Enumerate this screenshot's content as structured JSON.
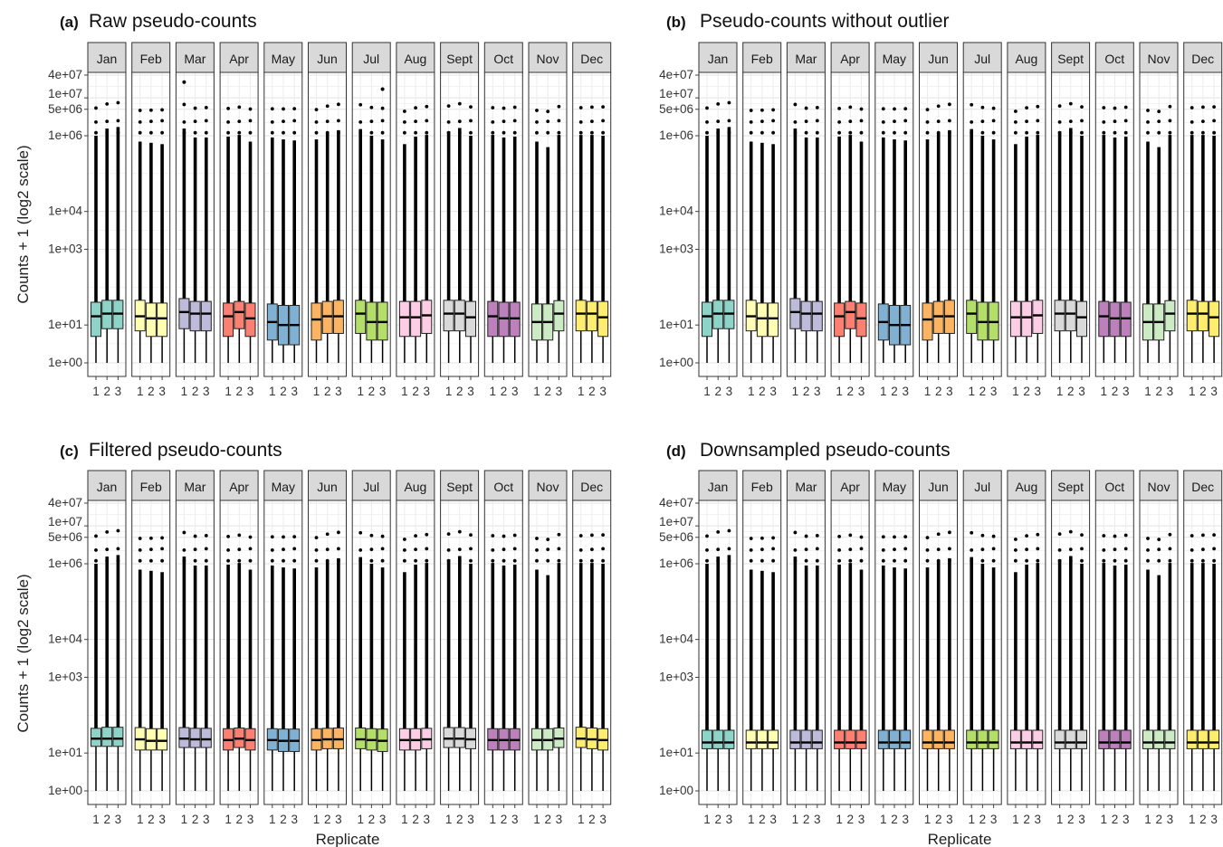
{
  "chart_data": {
    "type": "boxplot",
    "months": [
      "Jan",
      "Feb",
      "Mar",
      "Apr",
      "May",
      "Jun",
      "Jul",
      "Aug",
      "Sept",
      "Oct",
      "Nov",
      "Dec"
    ],
    "replicates": [
      "1",
      "2",
      "3"
    ],
    "yticks": [
      "1e+00",
      "1e+01",
      "1e+03",
      "1e+04",
      "1e+06",
      "5e+06",
      "1e+07",
      "4e+07"
    ],
    "ylabel": "Counts + 1 (log2 scale)",
    "xlabel": "Replicate",
    "yscale": "log2",
    "grid": true,
    "colors": [
      "#8dd3c7",
      "#ffffb3",
      "#bebada",
      "#fb8072",
      "#80b1d3",
      "#fdb462",
      "#b3de69",
      "#fccde5",
      "#d9d9d9",
      "#bc80bd",
      "#ccebc5",
      "#ffed6f"
    ],
    "panels": [
      {
        "letter": "(a)",
        "title": "Raw pseudo-counts",
        "stats": [
          [
            [
              1,
              5,
              17,
              40,
              14
            ],
            [
              1,
              8,
              20,
              45,
              25
            ],
            [
              1,
              8,
              20,
              45,
              28
            ]
          ],
          [
            [
              1,
              7,
              17,
              45,
              8
            ],
            [
              1,
              5,
              15,
              38,
              7
            ],
            [
              1,
              5,
              15,
              38,
              6
            ]
          ],
          [
            [
              1,
              8,
              22,
              50,
              25
            ],
            [
              1,
              7,
              20,
              42,
              12
            ],
            [
              1,
              7,
              20,
              42,
              12
            ]
          ],
          [
            [
              1,
              5,
              17,
              38,
              13
            ],
            [
              1,
              8,
              22,
              42,
              15
            ],
            [
              1,
              5,
              15,
              38,
              8
            ]
          ],
          [
            [
              1,
              4,
              12,
              36,
              12
            ],
            [
              1,
              3,
              10,
              33,
              10
            ],
            [
              1,
              3,
              10,
              33,
              9
            ]
          ],
          [
            [
              1,
              4,
              14,
              38,
              10
            ],
            [
              1,
              6,
              17,
              42,
              18
            ],
            [
              1,
              6,
              17,
              45,
              22
            ]
          ],
          [
            [
              1,
              6,
              20,
              45,
              24
            ],
            [
              1,
              4,
              12,
              40,
              14
            ],
            [
              1,
              4,
              12,
              40,
              10
            ]
          ],
          [
            [
              1,
              5,
              16,
              42,
              6
            ],
            [
              1,
              5,
              16,
              42,
              13
            ],
            [
              1,
              6,
              18,
              45,
              15
            ]
          ],
          [
            [
              1,
              7,
              20,
              45,
              20
            ],
            [
              1,
              7,
              20,
              45,
              26
            ],
            [
              1,
              5,
              16,
              42,
              14
            ]
          ],
          [
            [
              1,
              5,
              17,
              42,
              15
            ],
            [
              1,
              5,
              15,
              40,
              12
            ],
            [
              1,
              5,
              15,
              40,
              13
            ]
          ],
          [
            [
              1,
              4,
              12,
              36,
              8
            ],
            [
              1,
              4,
              12,
              36,
              4
            ],
            [
              1,
              7,
              20,
              44,
              15
            ]
          ],
          [
            [
              1,
              7,
              20,
              45,
              15
            ],
            [
              1,
              7,
              20,
              42,
              15
            ],
            [
              1,
              5,
              16,
              42,
              14
            ]
          ]
        ]
      },
      {
        "letter": "(b)",
        "title": "Pseudo-counts without outlier",
        "stats": [
          [
            [
              1,
              5,
              17,
              40,
              14
            ],
            [
              1,
              8,
              20,
              45,
              25
            ],
            [
              1,
              8,
              20,
              45,
              28
            ]
          ],
          [
            [
              1,
              7,
              17,
              45,
              8
            ],
            [
              1,
              5,
              15,
              38,
              7
            ],
            [
              1,
              5,
              15,
              38,
              6
            ]
          ],
          [
            [
              1,
              8,
              22,
              50,
              25
            ],
            [
              1,
              7,
              20,
              42,
              12
            ],
            [
              1,
              7,
              20,
              42,
              12
            ]
          ],
          [
            [
              1,
              5,
              17,
              38,
              13
            ],
            [
              1,
              8,
              22,
              42,
              15
            ],
            [
              1,
              5,
              15,
              38,
              8
            ]
          ],
          [
            [
              1,
              4,
              12,
              36,
              12
            ],
            [
              1,
              3,
              10,
              33,
              10
            ],
            [
              1,
              3,
              10,
              33,
              9
            ]
          ],
          [
            [
              1,
              4,
              14,
              38,
              10
            ],
            [
              1,
              6,
              17,
              42,
              18
            ],
            [
              1,
              6,
              17,
              45,
              22
            ]
          ],
          [
            [
              1,
              6,
              20,
              45,
              24
            ],
            [
              1,
              4,
              12,
              40,
              14
            ],
            [
              1,
              4,
              12,
              40,
              10
            ]
          ],
          [
            [
              1,
              5,
              16,
              42,
              6
            ],
            [
              1,
              5,
              16,
              42,
              13
            ],
            [
              1,
              6,
              18,
              45,
              15
            ]
          ],
          [
            [
              1,
              7,
              20,
              45,
              20
            ],
            [
              1,
              7,
              20,
              45,
              26
            ],
            [
              1,
              5,
              16,
              42,
              14
            ]
          ],
          [
            [
              1,
              5,
              17,
              42,
              15
            ],
            [
              1,
              5,
              15,
              40,
              12
            ],
            [
              1,
              5,
              15,
              40,
              13
            ]
          ],
          [
            [
              1,
              4,
              12,
              36,
              8
            ],
            [
              1,
              4,
              12,
              36,
              4
            ],
            [
              1,
              7,
              20,
              44,
              15
            ]
          ],
          [
            [
              1,
              7,
              20,
              45,
              15
            ],
            [
              1,
              7,
              20,
              42,
              15
            ],
            [
              1,
              5,
              16,
              42,
              14
            ]
          ]
        ]
      },
      {
        "letter": "(c)",
        "title": "Filtered pseudo-counts",
        "stats": [
          [
            [
              1,
              15,
              24,
              45,
              14
            ],
            [
              1,
              15,
              24,
              48,
              25
            ],
            [
              1,
              15,
              24,
              48,
              28
            ]
          ],
          [
            [
              1,
              12,
              23,
              47,
              8
            ],
            [
              1,
              12,
              21,
              44,
              7
            ],
            [
              1,
              12,
              21,
              44,
              6
            ]
          ],
          [
            [
              1,
              14,
              24,
              47,
              25
            ],
            [
              1,
              14,
              23,
              45,
              12
            ],
            [
              1,
              14,
              23,
              45,
              12
            ]
          ],
          [
            [
              1,
              12,
              22,
              44,
              13
            ],
            [
              1,
              14,
              24,
              46,
              15
            ],
            [
              1,
              12,
              22,
              44,
              8
            ]
          ],
          [
            [
              1,
              12,
              22,
              44,
              12
            ],
            [
              1,
              11,
              21,
              43,
              10
            ],
            [
              1,
              11,
              21,
              43,
              9
            ]
          ],
          [
            [
              1,
              12,
              22,
              44,
              10
            ],
            [
              1,
              13,
              23,
              45,
              18
            ],
            [
              1,
              13,
              23,
              46,
              22
            ]
          ],
          [
            [
              1,
              13,
              23,
              46,
              24
            ],
            [
              1,
              12,
              22,
              44,
              14
            ],
            [
              1,
              11,
              21,
              43,
              10
            ]
          ],
          [
            [
              1,
              12,
              22,
              44,
              6
            ],
            [
              1,
              12,
              22,
              44,
              13
            ],
            [
              1,
              13,
              23,
              45,
              15
            ]
          ],
          [
            [
              1,
              14,
              24,
              47,
              20
            ],
            [
              1,
              14,
              24,
              47,
              26
            ],
            [
              1,
              13,
              23,
              45,
              14
            ]
          ],
          [
            [
              1,
              12,
              22,
              44,
              15
            ],
            [
              1,
              12,
              22,
              44,
              12
            ],
            [
              1,
              12,
              22,
              44,
              13
            ]
          ],
          [
            [
              1,
              12,
              22,
              44,
              8
            ],
            [
              1,
              12,
              22,
              44,
              4
            ],
            [
              1,
              14,
              24,
              46,
              15
            ]
          ],
          [
            [
              1,
              14,
              24,
              48,
              15
            ],
            [
              1,
              13,
              23,
              46,
              15
            ],
            [
              1,
              12,
              22,
              44,
              14
            ]
          ]
        ]
      },
      {
        "letter": "(d)",
        "title": "Downsampled pseudo-counts",
        "stats": [
          [
            [
              1,
              13,
              19,
              40,
              14
            ],
            [
              1,
              13,
              19,
              40,
              25
            ],
            [
              1,
              13,
              19,
              40,
              28
            ]
          ],
          [
            [
              1,
              13,
              19,
              40,
              8
            ],
            [
              1,
              13,
              19,
              40,
              7
            ],
            [
              1,
              13,
              19,
              40,
              6
            ]
          ],
          [
            [
              1,
              13,
              19,
              40,
              25
            ],
            [
              1,
              13,
              19,
              40,
              12
            ],
            [
              1,
              13,
              19,
              40,
              12
            ]
          ],
          [
            [
              1,
              13,
              19,
              40,
              13
            ],
            [
              1,
              13,
              19,
              40,
              15
            ],
            [
              1,
              13,
              19,
              40,
              8
            ]
          ],
          [
            [
              1,
              13,
              19,
              40,
              12
            ],
            [
              1,
              13,
              19,
              40,
              10
            ],
            [
              1,
              13,
              19,
              40,
              9
            ]
          ],
          [
            [
              1,
              13,
              19,
              40,
              10
            ],
            [
              1,
              13,
              19,
              40,
              18
            ],
            [
              1,
              13,
              19,
              40,
              22
            ]
          ],
          [
            [
              1,
              13,
              19,
              40,
              24
            ],
            [
              1,
              13,
              19,
              40,
              14
            ],
            [
              1,
              13,
              19,
              40,
              10
            ]
          ],
          [
            [
              1,
              13,
              19,
              40,
              6
            ],
            [
              1,
              13,
              19,
              40,
              13
            ],
            [
              1,
              13,
              19,
              40,
              15
            ]
          ],
          [
            [
              1,
              13,
              19,
              40,
              20
            ],
            [
              1,
              13,
              19,
              40,
              26
            ],
            [
              1,
              13,
              19,
              40,
              14
            ]
          ],
          [
            [
              1,
              13,
              19,
              40,
              15
            ],
            [
              1,
              13,
              19,
              40,
              12
            ],
            [
              1,
              13,
              19,
              40,
              13
            ]
          ],
          [
            [
              1,
              13,
              19,
              40,
              8
            ],
            [
              1,
              13,
              19,
              40,
              4
            ],
            [
              1,
              13,
              19,
              40,
              15
            ]
          ],
          [
            [
              1,
              13,
              19,
              40,
              15
            ],
            [
              1,
              13,
              19,
              40,
              15
            ],
            [
              1,
              13,
              19,
              40,
              14
            ]
          ]
        ]
      }
    ]
  }
}
